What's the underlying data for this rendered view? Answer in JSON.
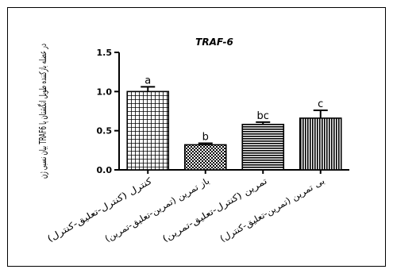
{
  "chart_data": {
    "type": "bar",
    "title": "TRAF-6",
    "ylabel": "بیان نسبی ژن TRAF6 در عضله بازکننده طویل انگشتان پا",
    "ylim": [
      0,
      1.5
    ],
    "yticks": [
      0.0,
      0.5,
      1.0,
      1.5
    ],
    "ytick_labels": [
      "0.0",
      "0.5",
      "1.0",
      "1.5"
    ],
    "grid": false,
    "categories": [
      "کنترل (کنترل-تعلیق-کنترل)",
      "باز تمرین (تمرین-تعلیق-تمرین)",
      "تمرین (کنترل-تعلیق-تمرین)",
      "بی تمرین (تمرین-تعلیق-کنترل)"
    ],
    "values": [
      1.0,
      0.32,
      0.58,
      0.66
    ],
    "errors": [
      0.06,
      0.02,
      0.03,
      0.1
    ],
    "significance_labels": [
      "a",
      "b",
      "bc",
      "c"
    ],
    "bar_patterns": [
      "grid",
      "checker",
      "horizontal-lines",
      "vertical-lines"
    ]
  }
}
